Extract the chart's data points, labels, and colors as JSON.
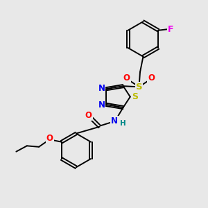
{
  "bg_color": "#e8e8e8",
  "bond_color": "#000000",
  "atom_colors": {
    "N": "#0000ee",
    "O": "#ff0000",
    "S_sulfonyl": "#bbbb00",
    "S_thiadiazol": "#bbbb00",
    "F": "#ee00ee",
    "H": "#008888",
    "C": "#000000"
  },
  "font_size": 8.5,
  "figsize": [
    3.0,
    3.0
  ],
  "dpi": 100,
  "lw": 1.4
}
